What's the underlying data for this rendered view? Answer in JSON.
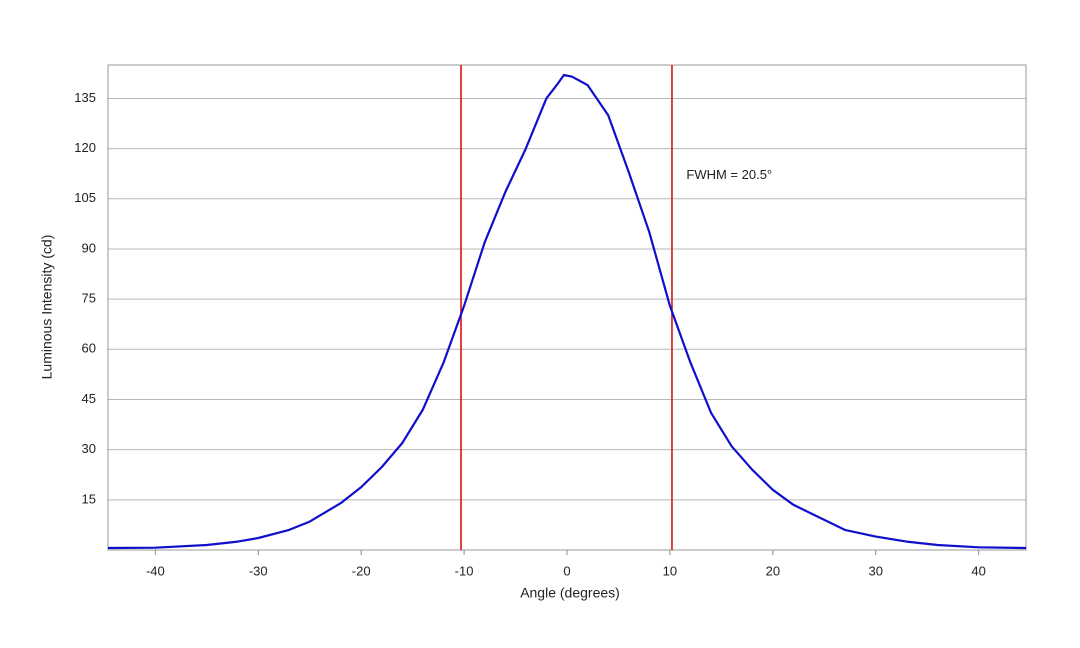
{
  "chart_data": {
    "type": "line",
    "x_label": "Angle (degrees)",
    "y_label": "Luminous Intensity (cd)",
    "annotation": {
      "text": "FWHM = 20.5°",
      "x": 11.6,
      "y": 112
    },
    "vlines": {
      "color": "#dd1111",
      "values": [
        -10.3,
        10.2
      ]
    },
    "x": [
      -44.6,
      -40,
      -35,
      -32,
      -30,
      -27,
      -25,
      -22,
      -20,
      -18,
      -16,
      -14,
      -12,
      -10,
      -8,
      -6,
      -4,
      -2,
      -1,
      -0.3,
      0.5,
      2,
      4,
      6,
      8,
      10,
      12,
      14,
      16,
      18,
      20,
      22,
      25,
      27,
      30,
      33,
      36,
      40,
      44.6
    ],
    "series": [
      {
        "color": "#1010cc",
        "values": [
          0.6,
          0.7,
          1.5,
          2.5,
          3.6,
          6,
          8.5,
          14,
          18.8,
          24.8,
          32,
          42,
          56,
          73,
          92,
          107,
          120,
          135,
          139,
          142,
          141.5,
          139,
          130,
          113,
          95,
          73,
          56,
          41,
          31,
          24,
          18,
          13.5,
          9,
          6,
          4,
          2.5,
          1.5,
          0.8,
          0.6
        ]
      }
    ],
    "xlim": [
      -44.6,
      44.6
    ],
    "xticks": [
      -40,
      -30,
      -20,
      -10,
      0,
      10,
      20,
      30,
      40
    ],
    "ylim": [
      0,
      145
    ],
    "yticks": [
      15,
      30,
      45,
      60,
      75,
      90,
      105,
      120,
      135
    ],
    "grid": true
  }
}
